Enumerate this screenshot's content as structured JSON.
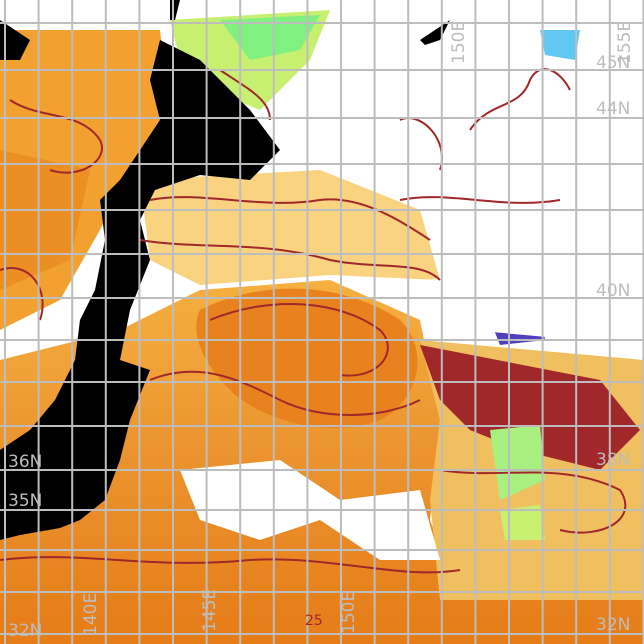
{
  "map": {
    "lat_labels": [
      {
        "text": "45N",
        "side": "right"
      },
      {
        "text": "44N",
        "side": "right"
      },
      {
        "text": "40N",
        "side": "right"
      },
      {
        "text": "38N",
        "side": "right"
      },
      {
        "text": "36N",
        "side": "left"
      },
      {
        "text": "35N",
        "side": "left"
      },
      {
        "text": "32N",
        "side": "left"
      },
      {
        "text": "32N",
        "side": "right"
      }
    ],
    "lon_labels": [
      {
        "text": "150E",
        "edge": "top"
      },
      {
        "text": "155E",
        "edge": "top"
      },
      {
        "text": "140E",
        "edge": "bottom"
      },
      {
        "text": "145E",
        "edge": "bottom"
      },
      {
        "text": "150E",
        "edge": "bottom"
      }
    ],
    "contour_labels": [
      "25"
    ],
    "colors": {
      "land": "#000000",
      "cloud": "#ffffff",
      "warm_water": "#e8801a",
      "mid_water": "#f5b040",
      "cool_water": "#f0e070",
      "cold_water": "#80f080",
      "coldest_water": "#60c8f0",
      "contour": "#a0282a",
      "grid": "#bdbdbd"
    }
  }
}
